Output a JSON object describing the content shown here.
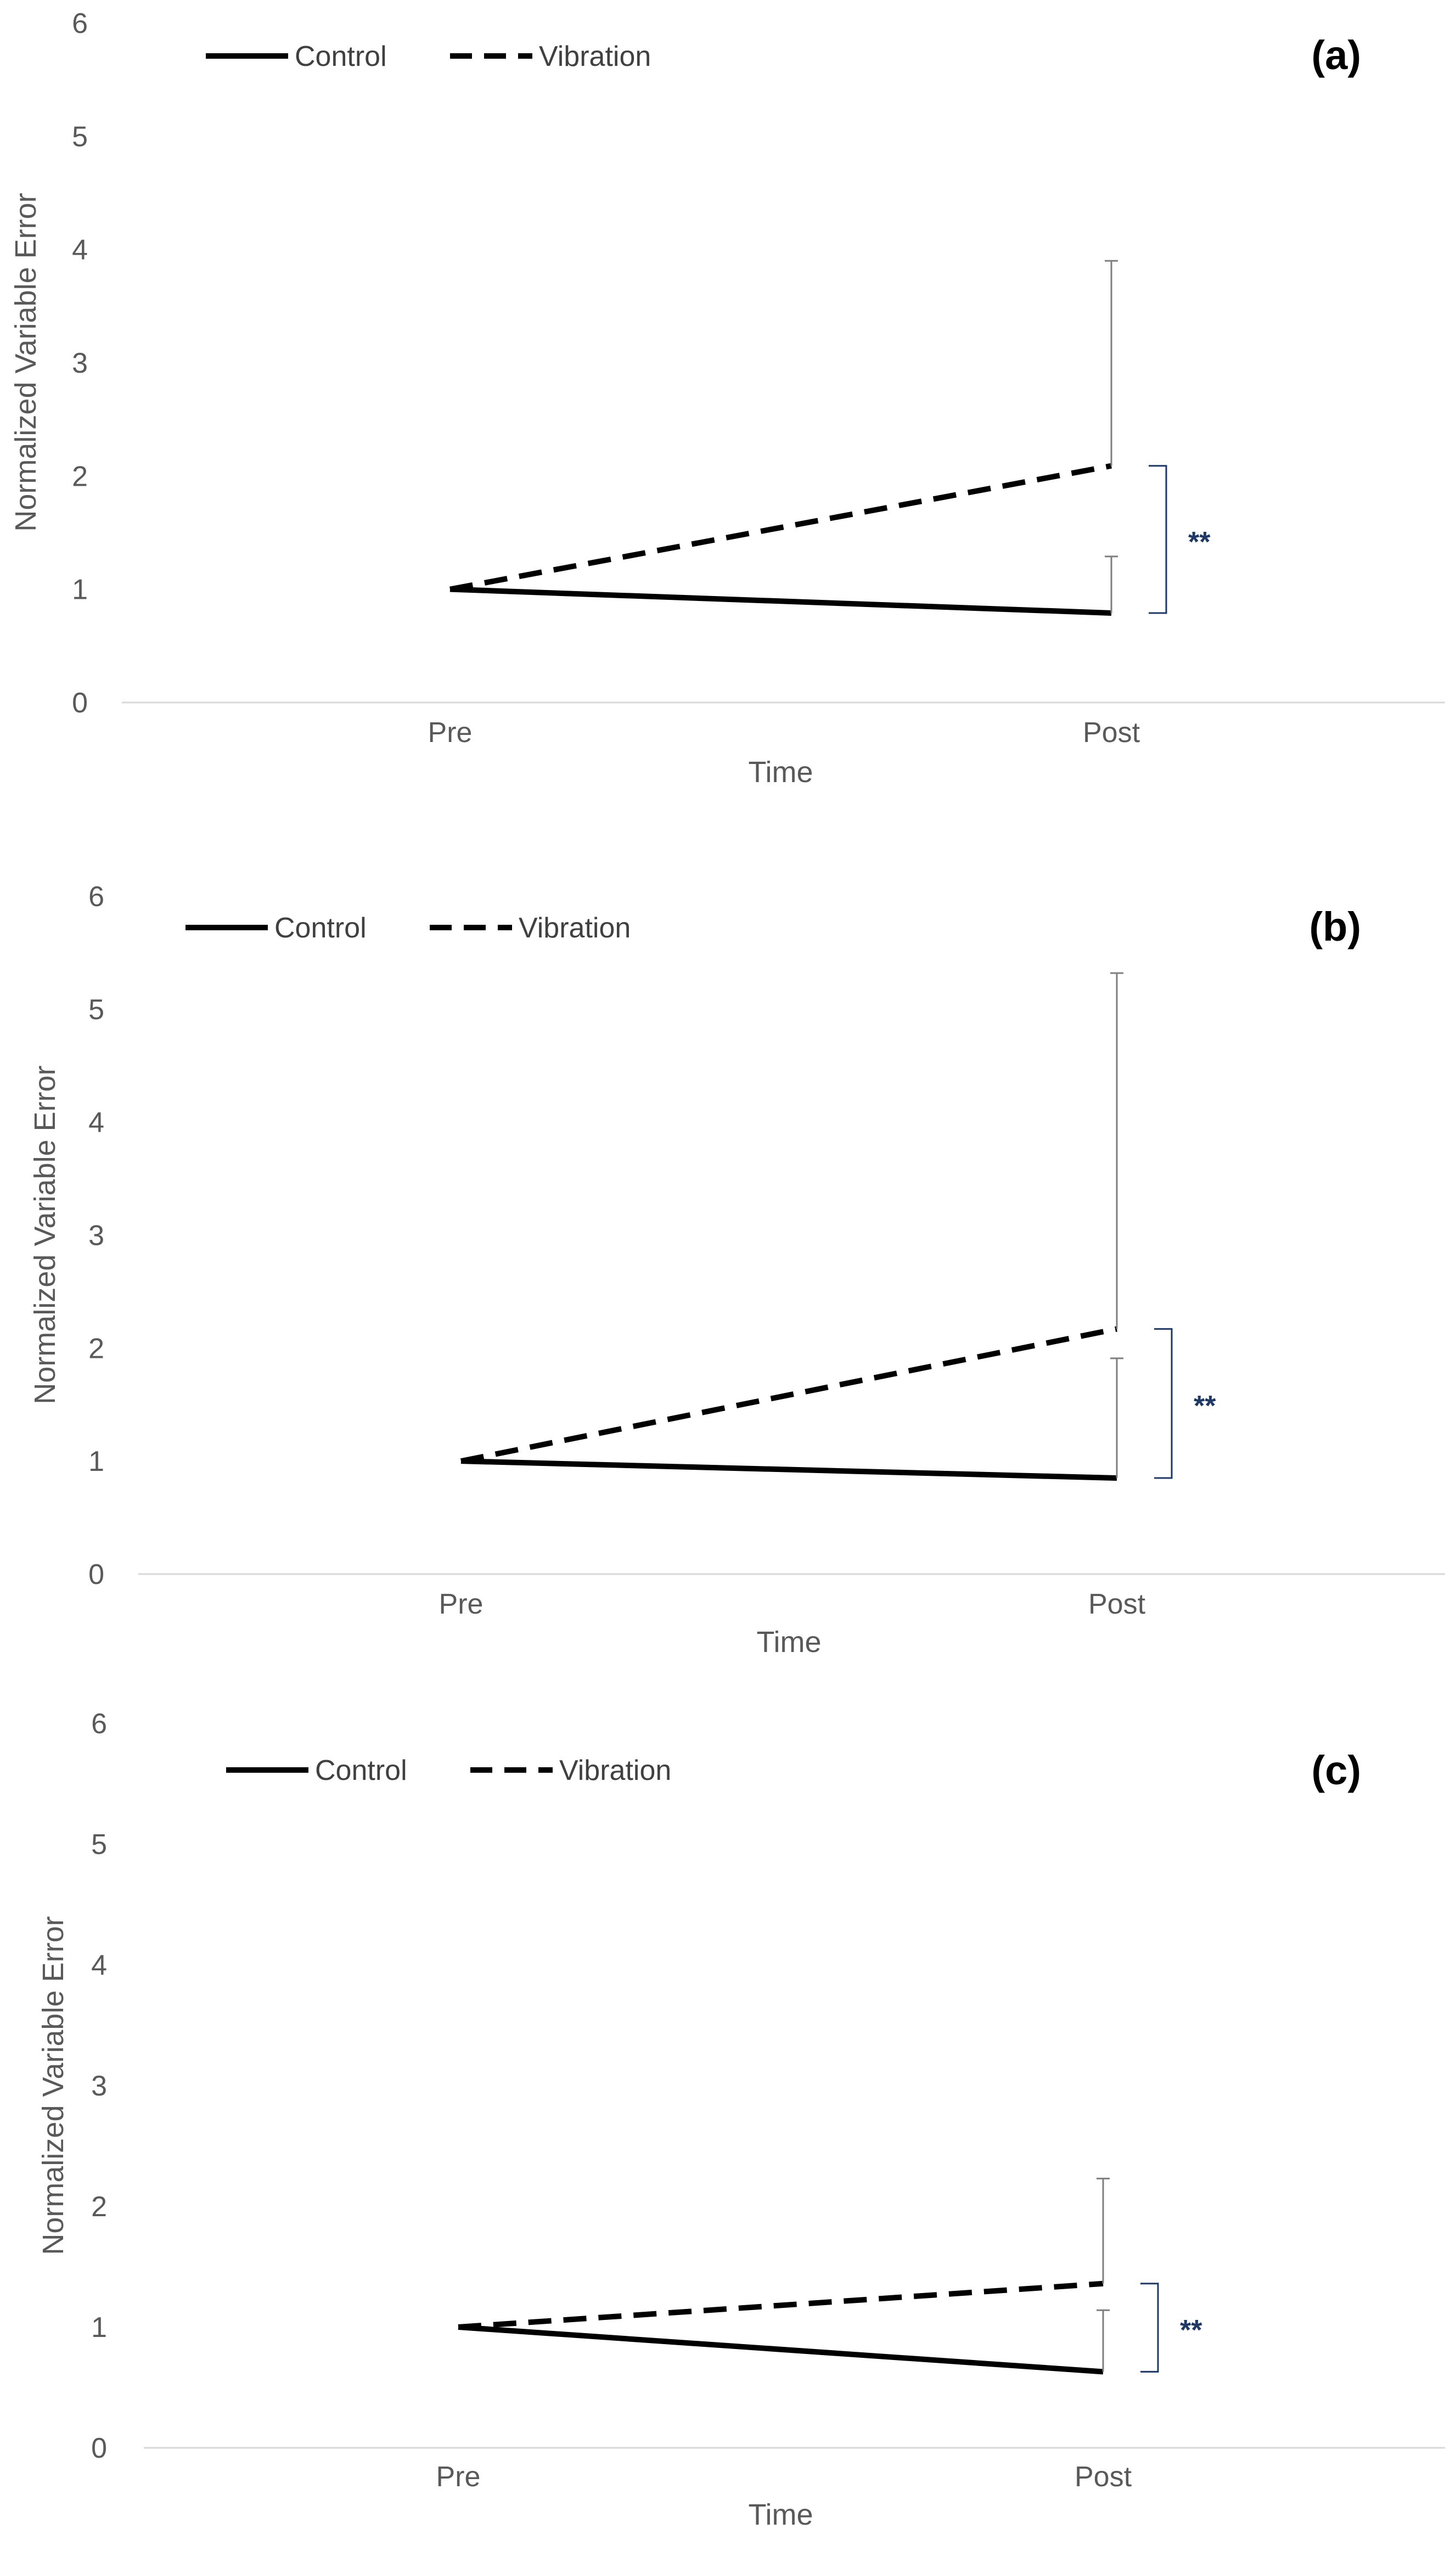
{
  "chart_data": [
    {
      "type": "line",
      "panel_label": "(a)",
      "xlabel": "Time",
      "ylabel": "Normalized Variable Error",
      "categories": [
        "Pre",
        "Post"
      ],
      "ylim": [
        0,
        6
      ],
      "yticks": [
        "0",
        "1",
        "2",
        "3",
        "4",
        "5",
        "6"
      ],
      "series": [
        {
          "name": "Control",
          "style": "solid",
          "values": [
            1.0,
            0.79
          ],
          "error_upper": [
            null,
            1.29
          ]
        },
        {
          "name": "Vibration",
          "style": "dashed",
          "values": [
            1.0,
            2.09
          ],
          "error_upper": [
            null,
            3.9
          ]
        }
      ],
      "significance": {
        "label": "**",
        "between": [
          "Control",
          "Vibration"
        ],
        "at": "Post"
      }
    },
    {
      "type": "line",
      "panel_label": "(b)",
      "xlabel": "Time",
      "ylabel": "Normalized Variable Error",
      "categories": [
        "Pre",
        "Post"
      ],
      "ylim": [
        0,
        6
      ],
      "yticks": [
        "0",
        "1",
        "2",
        "3",
        "4",
        "5",
        "6"
      ],
      "series": [
        {
          "name": "Control",
          "style": "solid",
          "values": [
            1.0,
            0.85
          ],
          "error_upper": [
            null,
            1.91
          ]
        },
        {
          "name": "Vibration",
          "style": "dashed",
          "values": [
            1.0,
            2.17
          ],
          "error_upper": [
            null,
            5.32
          ]
        }
      ],
      "significance": {
        "label": "**",
        "between": [
          "Control",
          "Vibration"
        ],
        "at": "Post"
      }
    },
    {
      "type": "line",
      "panel_label": "(c)",
      "xlabel": "Time",
      "ylabel": "Normalized Variable Error",
      "categories": [
        "Pre",
        "Post"
      ],
      "ylim": [
        0,
        6
      ],
      "yticks": [
        "0",
        "1",
        "2",
        "3",
        "4",
        "5",
        "6"
      ],
      "series": [
        {
          "name": "Control",
          "style": "solid",
          "values": [
            1.0,
            0.63
          ],
          "error_upper": [
            null,
            1.14
          ]
        },
        {
          "name": "Vibration",
          "style": "dashed",
          "values": [
            1.0,
            1.36
          ],
          "error_upper": [
            null,
            2.23
          ]
        }
      ],
      "significance": {
        "label": "**",
        "between": [
          "Control",
          "Vibration"
        ],
        "at": "Post"
      }
    }
  ],
  "colors": {
    "line": "#000000",
    "axis": "#d9d9d9",
    "error_bar": "#7f7f7f",
    "bracket": "#1f3864",
    "tick_text": "#595959"
  }
}
